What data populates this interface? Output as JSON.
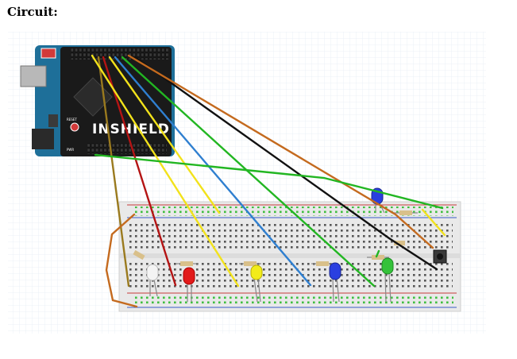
{
  "page": {
    "heading": "Circuit:"
  },
  "diagram": {
    "board_logo": "INSHIELD",
    "board_small_labels": {
      "reset": "RESET",
      "power": "PWR"
    },
    "colors": {
      "grid_bg": "#ffffff",
      "grid_line": "#e6eef5",
      "arduino_blue": "#1e6f99",
      "shield_black": "#1a1a1a",
      "breadboard": "#e9e9e9",
      "rail_red": "#c83c3c",
      "rail_blue": "#3c5ac8",
      "hole_green": "#3fbf3f",
      "wire_yellow": "#f2e21b",
      "wire_red": "#b41414",
      "wire_blue": "#2f7fd0",
      "wire_green": "#22b622",
      "wire_black": "#111111",
      "wire_orange": "#c46a1e",
      "wire_olive": "#9a7a1e",
      "led_white": "#f4f4f4",
      "led_red": "#e21a1a",
      "led_yellow": "#f2ec1a",
      "led_blue": "#2a3fe0",
      "led_green": "#34c23a",
      "resistor_body": "#d9c08a"
    },
    "components": [
      {
        "type": "led",
        "color": "white"
      },
      {
        "type": "led",
        "color": "red"
      },
      {
        "type": "led",
        "color": "yellow"
      },
      {
        "type": "led",
        "color": "blue"
      },
      {
        "type": "led",
        "color": "green"
      },
      {
        "type": "led",
        "color": "blue"
      },
      {
        "type": "resistor"
      },
      {
        "type": "pushbutton"
      }
    ]
  }
}
